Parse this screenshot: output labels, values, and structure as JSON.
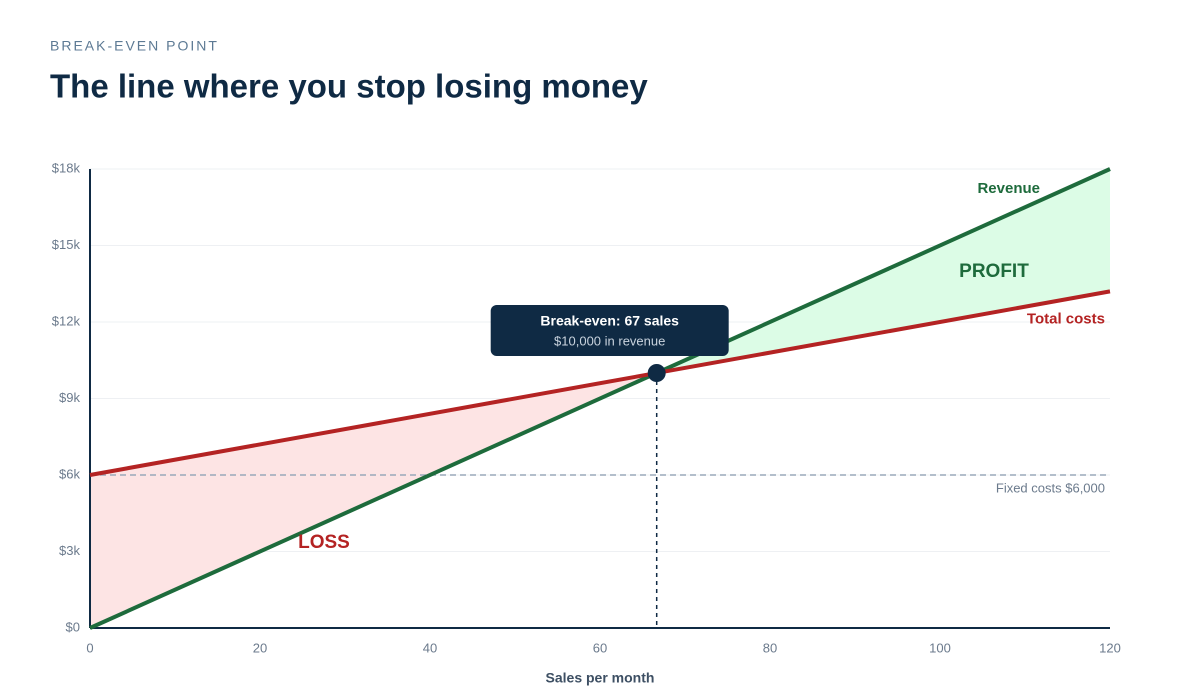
{
  "chart_data": {
    "type": "line",
    "kicker": "BREAK-EVEN POINT",
    "title": "The line where you stop losing money",
    "x_label": "Sales per month",
    "x": [
      0,
      120
    ],
    "xlim": [
      0,
      120
    ],
    "xticks": [
      0,
      20,
      40,
      60,
      80,
      100,
      120
    ],
    "ylim": [
      0,
      18000
    ],
    "yticks": [
      {
        "value": 0,
        "label": "$0"
      },
      {
        "value": 3000,
        "label": "$3k"
      },
      {
        "value": 6000,
        "label": "$6k"
      },
      {
        "value": 9000,
        "label": "$9k"
      },
      {
        "value": 12000,
        "label": "$12k"
      },
      {
        "value": 15000,
        "label": "$15k"
      },
      {
        "value": 18000,
        "label": "$18k"
      }
    ],
    "grid": true,
    "series": [
      {
        "name": "Revenue",
        "color": "#1e6b3c",
        "values": [
          0,
          18000
        ]
      },
      {
        "name": "Total costs",
        "color": "#b42323",
        "values": [
          6000,
          13200
        ]
      }
    ],
    "fixed_costs": {
      "value": 6000,
      "label": "Fixed costs $6,000"
    },
    "break_even": {
      "x": 66.67,
      "y": 10000,
      "label": "Break-even: 67 sales",
      "sublabel": "$10,000 in revenue"
    },
    "profit_label": "PROFIT",
    "loss_label": "LOSS",
    "profit_color": "#dcfce6",
    "loss_color": "#fde4e4"
  }
}
